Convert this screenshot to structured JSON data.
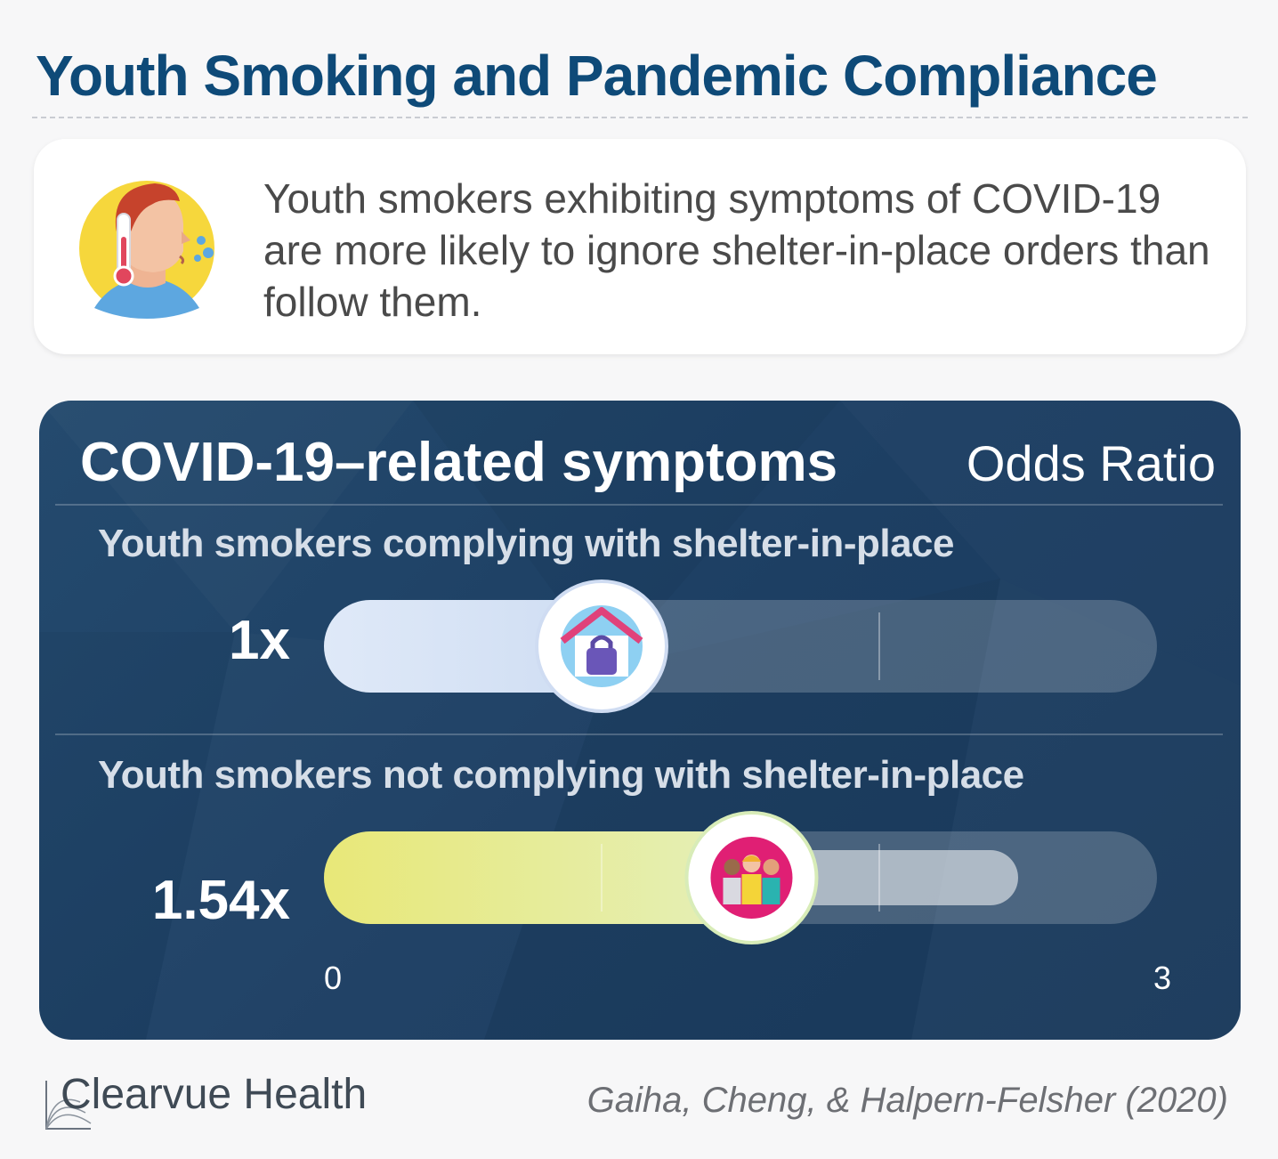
{
  "page": {
    "title": "Youth Smoking and Pandemic Compliance",
    "intro": "Youth smokers exhibiting symptoms of COVID-19 are more likely to ignore shelter-in-place orders than follow them.",
    "brand": "Clearvue Health",
    "citation": "Gaiha, Cheng, & Halpern-Felsher (2020)",
    "icons": {
      "intro": "sick-person-thermometer-icon",
      "row1": "house-lock-icon",
      "row2": "group-of-people-icon"
    },
    "colors": {
      "title": "#0e4a78",
      "panel": "#1f4266",
      "row1_fill": "#d6e4f7",
      "row2_fill": "#e9ea8a"
    }
  },
  "chart_data": {
    "type": "bar",
    "title": "COVID-19–related symptoms",
    "value_label": "Odds Ratio",
    "categories": [
      "Youth smokers complying with shelter-in-place",
      "Youth smokers not complying with shelter-in-place"
    ],
    "values": [
      1,
      1.54
    ],
    "value_labels": [
      "1x",
      "1.54x"
    ],
    "interval": {
      "row": 1,
      "low": 1.35,
      "high": 2.5
    },
    "xlim": [
      0,
      3
    ],
    "xtick_labels": [
      "0",
      "3"
    ],
    "gridlines": [
      1,
      2
    ]
  }
}
